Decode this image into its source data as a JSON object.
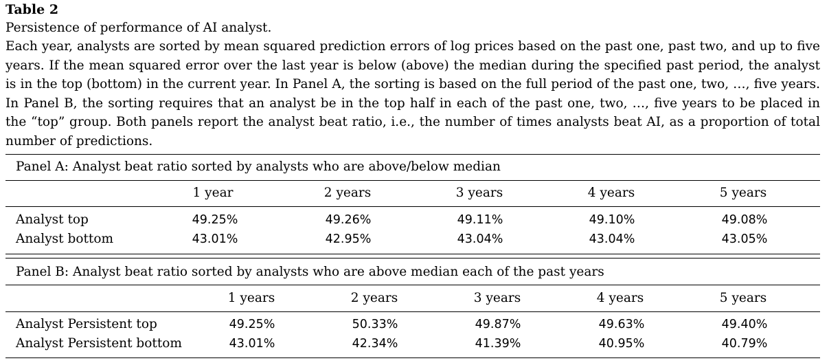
{
  "table_label": "Table 2",
  "title": "Persistence of performance of AI analyst.",
  "caption": "Each year, analysts are sorted by mean squared prediction errors of log prices based on the past one, past two, and up to five years. If the mean squared error over the last year is below (above) the median during the specified past period, the analyst is in the top (bottom) in the current year. In Panel A, the sorting is based on the full period of the past one, two, …, five years. In Panel B, the sorting requires that an analyst be in the top half in each of the past one, two, …, five years to be placed in the “top” group. Both panels report the analyst beat ratio, i.e., the number of times analysts beat AI, as a proportion of total number of predictions.",
  "panel_a": {
    "title": "Panel A: Analyst beat ratio sorted by analysts who are above/below median",
    "headers": [
      "1 year",
      "2 years",
      "3 years",
      "4 years",
      "5 years"
    ],
    "rows": [
      {
        "label": "Analyst top",
        "values": [
          "49.25%",
          "49.26%",
          "49.11%",
          "49.10%",
          "49.08%"
        ]
      },
      {
        "label": "Analyst bottom",
        "values": [
          "43.01%",
          "42.95%",
          "43.04%",
          "43.04%",
          "43.05%"
        ]
      }
    ]
  },
  "panel_b": {
    "title": "Panel B: Analyst beat ratio sorted by analysts who are above median each of the past years",
    "headers": [
      "1 years",
      "2 years",
      "3 years",
      "4 years",
      "5 years"
    ],
    "rows": [
      {
        "label": "Analyst Persistent top",
        "values": [
          "49.25%",
          "50.33%",
          "49.87%",
          "49.63%",
          "49.40%"
        ]
      },
      {
        "label": "Analyst Persistent bottom",
        "values": [
          "43.01%",
          "42.34%",
          "41.39%",
          "40.95%",
          "40.79%"
        ]
      }
    ]
  }
}
